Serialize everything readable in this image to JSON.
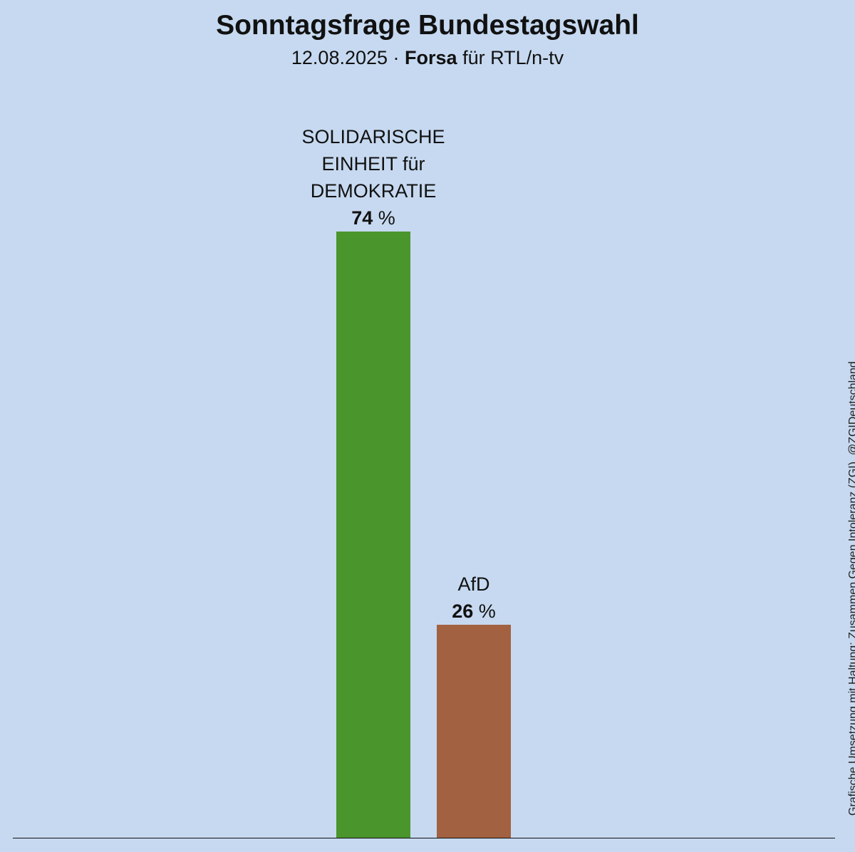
{
  "header": {
    "title": "Sonntagsfrage Bundestagswahl",
    "date": "12.08.2025",
    "separator": " · ",
    "institute": "Forsa",
    "client": " für RTL/n-tv"
  },
  "credit": "Grafische Umsetzung mit Haltung: Zusammen Gegen Intoleranz (ZGI), @ZGIDeutschland",
  "chart_data": {
    "type": "bar",
    "categories": [
      "SOLIDARISCHE EINHEIT für DEMOKRATIE",
      "AfD"
    ],
    "label_lines": [
      [
        "SOLIDARISCHE",
        "EINHEIT für",
        "DEMOKRATIE"
      ],
      [
        "AfD"
      ]
    ],
    "values": [
      74,
      26
    ],
    "unit": "%",
    "colors": [
      "#4a962d",
      "#a26140"
    ],
    "ylim": [
      0,
      100
    ],
    "grid": false,
    "legend": "none"
  }
}
